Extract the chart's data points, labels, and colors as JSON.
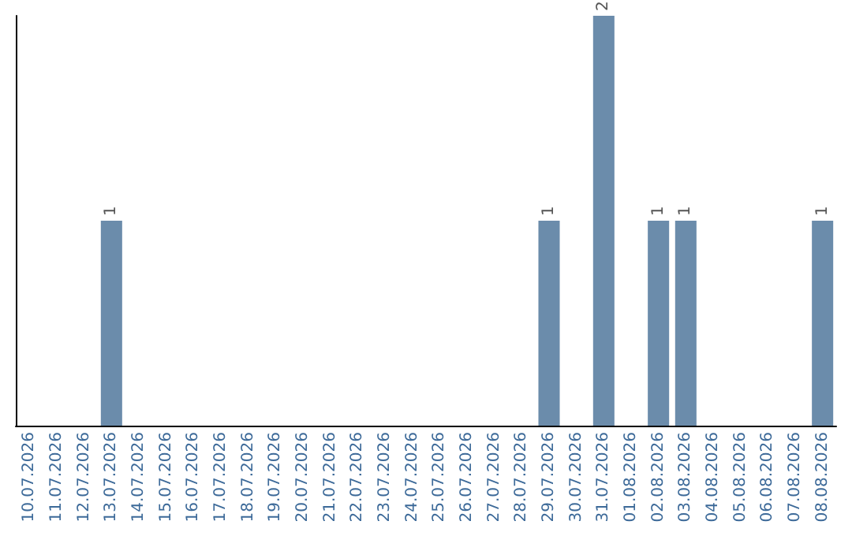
{
  "chart_data": {
    "type": "bar",
    "categories": [
      "10.07.2026",
      "11.07.2026",
      "12.07.2026",
      "13.07.2026",
      "14.07.2026",
      "15.07.2026",
      "16.07.2026",
      "17.07.2026",
      "18.07.2026",
      "19.07.2026",
      "20.07.2026",
      "21.07.2026",
      "22.07.2026",
      "23.07.2026",
      "24.07.2026",
      "25.07.2026",
      "26.07.2026",
      "27.07.2026",
      "28.07.2026",
      "29.07.2026",
      "30.07.2026",
      "31.07.2026",
      "01.08.2026",
      "02.08.2026",
      "03.08.2026",
      "04.08.2026",
      "05.08.2026",
      "06.08.2026",
      "07.08.2026",
      "08.08.2026"
    ],
    "values": [
      0,
      0,
      0,
      1,
      0,
      0,
      0,
      0,
      0,
      0,
      0,
      0,
      0,
      0,
      0,
      0,
      0,
      0,
      0,
      1,
      0,
      2,
      0,
      1,
      1,
      0,
      0,
      0,
      0,
      1
    ],
    "value_labels": [
      null,
      null,
      null,
      "1",
      null,
      null,
      null,
      null,
      null,
      null,
      null,
      null,
      null,
      null,
      null,
      null,
      null,
      null,
      null,
      "1",
      null,
      "2",
      null,
      "1",
      "1",
      null,
      null,
      null,
      null,
      "1"
    ],
    "color": "#6b8cab",
    "tick_labels": "x",
    "grid": false
  }
}
